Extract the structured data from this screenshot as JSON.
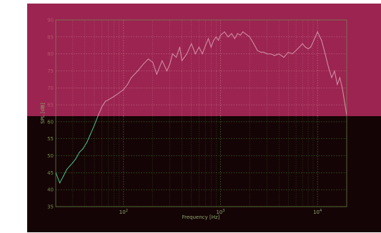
{
  "chart_data": {
    "type": "line",
    "title": "",
    "xlabel": "Frequency [Hz]",
    "ylabel": "SPL [dB]",
    "xscale": "log",
    "xlim": [
      20,
      20000
    ],
    "ylim": [
      35,
      90
    ],
    "grid": true,
    "x_ticks": [
      {
        "value": 100,
        "base": "10",
        "exp": "2"
      },
      {
        "value": 1000,
        "base": "10",
        "exp": "3"
      },
      {
        "value": 10000,
        "base": "10",
        "exp": "4"
      }
    ],
    "y_ticks": [
      "35",
      "40",
      "45",
      "50",
      "55",
      "60",
      "65",
      "70",
      "75",
      "80",
      "85",
      "90"
    ],
    "series": [
      {
        "color": "#46c08c",
        "x": [
          20,
          22,
          24,
          26,
          28,
          30,
          32,
          35,
          38,
          42,
          45,
          50,
          55,
          60,
          65,
          70,
          80,
          90,
          100,
          110,
          120,
          140,
          160,
          180,
          200,
          220,
          250,
          280,
          300,
          320,
          350,
          380,
          400,
          450,
          500,
          550,
          600,
          650,
          700,
          750,
          800,
          850,
          900,
          950,
          1000,
          1100,
          1200,
          1300,
          1400,
          1500,
          1600,
          1700,
          1800,
          2000,
          2200,
          2400,
          2600,
          2800,
          3000,
          3300,
          3600,
          4000,
          4500,
          5000,
          5500,
          6000,
          6500,
          7000,
          7500,
          8000,
          8500,
          9000,
          9500,
          10000,
          11000,
          12000,
          13000,
          14000,
          15000,
          16000,
          17000,
          18000,
          20000
        ],
        "y": [
          45,
          42,
          44,
          46,
          47,
          48,
          49,
          51,
          52,
          54,
          56,
          59,
          62,
          64.5,
          66,
          66.5,
          67.5,
          68.5,
          69.5,
          71,
          73,
          75,
          77,
          78.5,
          77.5,
          74,
          78,
          75,
          77,
          80,
          79,
          82,
          78,
          80,
          83,
          80,
          82,
          80,
          82.5,
          84.5,
          82,
          84,
          85,
          84,
          85.5,
          86.5,
          85,
          86,
          84.5,
          86,
          85.5,
          86.5,
          86,
          85,
          83,
          81,
          80.5,
          80.5,
          80,
          80,
          79.5,
          80,
          79,
          80.5,
          80,
          81,
          82,
          83,
          82,
          81.5,
          82,
          83.5,
          85,
          86.5,
          84,
          80,
          76,
          73,
          75,
          71,
          73,
          70,
          62
        ]
      }
    ]
  }
}
